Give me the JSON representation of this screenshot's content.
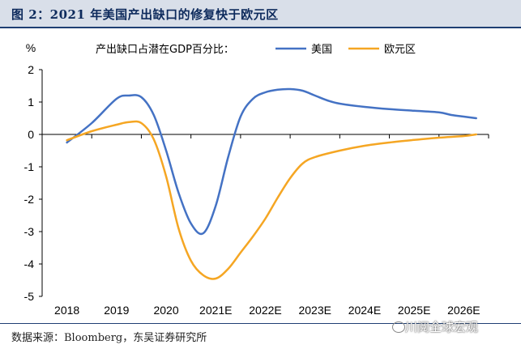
{
  "title": "图 2：2021 年美国产出缺口的修复快于欧元区",
  "source": "数据来源：Bloomberg，东吴证券研究所",
  "watermark": "川阅全球宏观",
  "chart_data": {
    "type": "line",
    "title": "",
    "ylabel": "%",
    "xlabel": "",
    "ylim": [
      -5,
      2
    ],
    "yticks": [
      -5,
      -4,
      -3,
      -2,
      -1,
      0,
      1,
      2
    ],
    "categories": [
      "2018",
      "2019",
      "2020",
      "2021E",
      "2022E",
      "2023E",
      "2024E",
      "2025E",
      "2026E"
    ],
    "legend_title": "产出缺口占潜在GDP百分比：",
    "legend_placement": "top",
    "grid": false,
    "series": [
      {
        "name": "美国",
        "color": "#4472c4",
        "points": [
          [
            0,
            -0.25
          ],
          [
            0.5,
            0.35
          ],
          [
            1,
            1.1
          ],
          [
            1.25,
            1.2
          ],
          [
            1.5,
            1.15
          ],
          [
            1.75,
            0.6
          ],
          [
            2,
            -0.5
          ],
          [
            2.25,
            -1.8
          ],
          [
            2.5,
            -2.75
          ],
          [
            2.75,
            -3.05
          ],
          [
            3,
            -2.2
          ],
          [
            3.25,
            -0.7
          ],
          [
            3.5,
            0.55
          ],
          [
            3.75,
            1.1
          ],
          [
            4,
            1.3
          ],
          [
            4.25,
            1.38
          ],
          [
            4.5,
            1.4
          ],
          [
            4.75,
            1.35
          ],
          [
            5,
            1.2
          ],
          [
            5.25,
            1.05
          ],
          [
            5.5,
            0.95
          ],
          [
            6,
            0.85
          ],
          [
            6.5,
            0.78
          ],
          [
            7,
            0.73
          ],
          [
            7.5,
            0.68
          ],
          [
            7.75,
            0.6
          ],
          [
            8,
            0.55
          ],
          [
            8.25,
            0.5
          ]
        ]
      },
      {
        "name": "欧元区",
        "color": "#f5a623",
        "points": [
          [
            0,
            -0.18
          ],
          [
            0.5,
            0.1
          ],
          [
            1,
            0.3
          ],
          [
            1.25,
            0.38
          ],
          [
            1.5,
            0.35
          ],
          [
            1.75,
            -0.15
          ],
          [
            2,
            -1.3
          ],
          [
            2.25,
            -2.9
          ],
          [
            2.5,
            -3.9
          ],
          [
            2.75,
            -4.35
          ],
          [
            3,
            -4.45
          ],
          [
            3.25,
            -4.15
          ],
          [
            3.5,
            -3.65
          ],
          [
            3.75,
            -3.15
          ],
          [
            4,
            -2.6
          ],
          [
            4.25,
            -1.95
          ],
          [
            4.5,
            -1.35
          ],
          [
            4.75,
            -0.9
          ],
          [
            5,
            -0.7
          ],
          [
            5.5,
            -0.5
          ],
          [
            6,
            -0.35
          ],
          [
            6.5,
            -0.25
          ],
          [
            7,
            -0.17
          ],
          [
            7.5,
            -0.1
          ],
          [
            8,
            -0.05
          ],
          [
            8.25,
            0.0
          ]
        ]
      }
    ]
  }
}
